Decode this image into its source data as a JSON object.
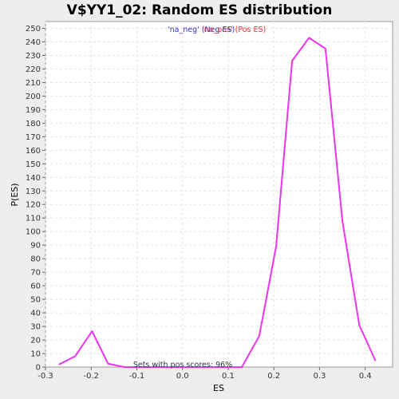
{
  "chart_data": {
    "type": "line",
    "title": "V$YY1_02: Random ES distribution",
    "xlabel": "ES",
    "ylabel": "P(ES)",
    "xlim": [
      -0.3,
      0.46
    ],
    "ylim": [
      0,
      255
    ],
    "x_ticks": [
      "-0.3",
      "-0.2",
      "-0.1",
      "0.0",
      "0.1",
      "0.2",
      "0.3",
      "0.4"
    ],
    "x_tick_values": [
      -0.3,
      -0.2,
      -0.1,
      0.0,
      0.1,
      0.2,
      0.3,
      0.4
    ],
    "y_ticks": [
      "0",
      "10",
      "20",
      "30",
      "40",
      "50",
      "60",
      "70",
      "80",
      "90",
      "100",
      "110",
      "120",
      "130",
      "140",
      "150",
      "160",
      "170",
      "180",
      "190",
      "200",
      "210",
      "220",
      "230",
      "240",
      "250"
    ],
    "y_tick_values": [
      0,
      10,
      20,
      30,
      40,
      50,
      60,
      70,
      80,
      90,
      100,
      110,
      120,
      130,
      140,
      150,
      160,
      170,
      180,
      190,
      200,
      210,
      220,
      230,
      240,
      250
    ],
    "grid": true,
    "legend": [
      {
        "label": "'na_neg' (Neg ES)",
        "color": "#3333cc"
      },
      {
        "label": "'na_pos' (Pos ES)",
        "color": "#dd3333"
      }
    ],
    "legend_placement": "top-center",
    "annotation": "Sets with pos scores: 96%",
    "series": [
      {
        "color": "#ee33ee",
        "x": [
          -0.27,
          -0.235,
          -0.198,
          -0.163,
          -0.127,
          -0.092,
          -0.056,
          -0.02,
          0.015,
          0.05,
          0.087,
          0.13,
          0.168,
          0.205,
          0.24,
          0.277,
          0.313,
          0.35,
          0.387,
          0.422
        ],
        "y": [
          2,
          8,
          26.5,
          2.5,
          0,
          0,
          0,
          0,
          0,
          0,
          0,
          0,
          23,
          89,
          226,
          243,
          235,
          108,
          31,
          5
        ]
      }
    ]
  }
}
